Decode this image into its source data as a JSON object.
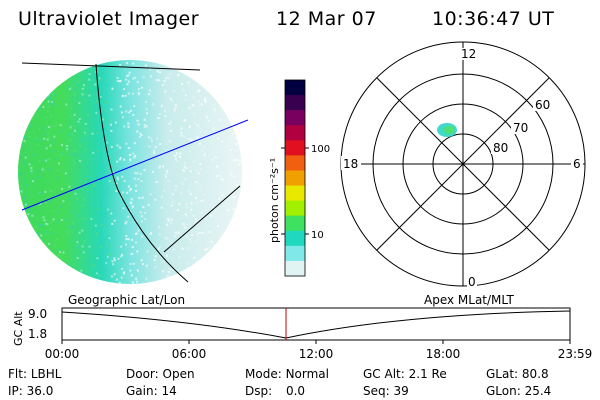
{
  "header": {
    "instrument": "Ultraviolet Imager",
    "date": "12 Mar 07",
    "time": "10:36:47 UT"
  },
  "colorbar": {
    "unit": "photon cm⁻²s⁻¹",
    "ticks": [
      "100",
      "10"
    ],
    "colors": [
      "#000040",
      "#3a0050",
      "#7a0060",
      "#b00040",
      "#e01020",
      "#f06010",
      "#f0a000",
      "#e8e800",
      "#a0f000",
      "#40e060",
      "#20d8c0",
      "#80e8e8",
      "#e0f4f4"
    ]
  },
  "polar": {
    "mlt_labels": [
      "12",
      "18",
      "6",
      "0"
    ],
    "lat_labels": [
      "60",
      "70",
      "80"
    ]
  },
  "timeline": {
    "left_title": "Geographic Lat/Lon",
    "right_title": "Apex MLat/MLT",
    "y_axis_label": "GC Alt",
    "y_ticks": [
      "9.0",
      "1.8"
    ],
    "x_ticks": [
      "00:00",
      "06:00",
      "12:00",
      "18:00",
      "23:59"
    ]
  },
  "status": {
    "flt_label": "Flt:",
    "flt_value": "LBHL",
    "ip_label": "IP:",
    "ip_value": "36.0",
    "door_label": "Door:",
    "door_value": "Open",
    "gain_label": "Gain:",
    "gain_value": "14",
    "mode_label": "Mode:",
    "mode_value": "Normal",
    "dsp_label": "Dsp:",
    "dsp_value": "0.0",
    "gcalt_label": "GC Alt:",
    "gcalt_value": "2.1 Re",
    "seq_label": "Seq:",
    "seq_value": "39",
    "glat_label": "GLat:",
    "glat_value": "80.8",
    "glon_label": "GLon:",
    "glon_value": "25.4"
  }
}
